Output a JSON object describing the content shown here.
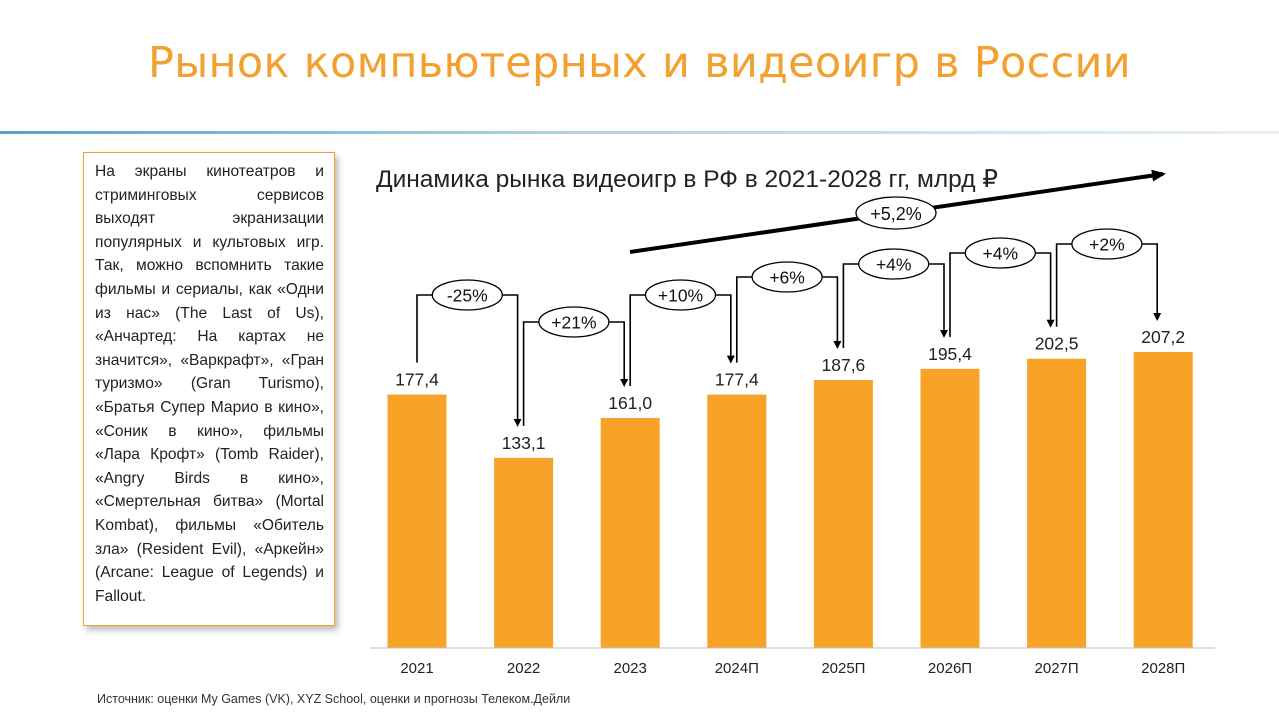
{
  "page": {
    "title": "Рынок компьютерных и видеоигр в России",
    "note": "На экраны кинотеатров и стриминговых сервисов выходят экранизации популярных и культовых игр. Так, можно вспомнить такие фильмы и сериалы, как «Одни из нас» (The Last of Us), «Анчартед: На картах не значится», «Варкрафт», «Гран туризмо» (Gran Turismo), «Братья Супер Марио в кино», «Соник в кино», фильмы «Лара Крофт» (Tomb Raider), «Angry Birds в кино», «Смертельная битва» (Mortal Kombat), фильмы «Обитель зла» (Resident Evil), «Аркейн» (Arcane: League of Legends) и Fallout.",
    "source": "Источник: оценки My Games (VK), XYZ School, оценки и прогнозы Телеком.Дейли"
  },
  "colors": {
    "accent": "#f2a030",
    "bar": "#f8a327",
    "text": "#222222"
  },
  "chart_data": {
    "type": "bar",
    "title": "Динамика рынка видеоигр в РФ в 2021-2028 гг, млрд ₽",
    "categories": [
      "2021",
      "2022",
      "2023",
      "2024П",
      "2025П",
      "2026П",
      "2027П",
      "2028П"
    ],
    "values": [
      177.4,
      133.1,
      161.0,
      177.4,
      187.6,
      195.4,
      202.5,
      207.2
    ],
    "value_labels": [
      "177,4",
      "133,1",
      "161,0",
      "177,4",
      "187,6",
      "195,4",
      "202,5",
      "207,2"
    ],
    "growth_labels": [
      "-25%",
      "+21%",
      "+10%",
      "+6%",
      "+4%",
      "+4%",
      "+2%"
    ],
    "cagr_label": "+5,2%",
    "ylim": [
      0,
      250
    ],
    "grid": false,
    "legend": "none"
  }
}
